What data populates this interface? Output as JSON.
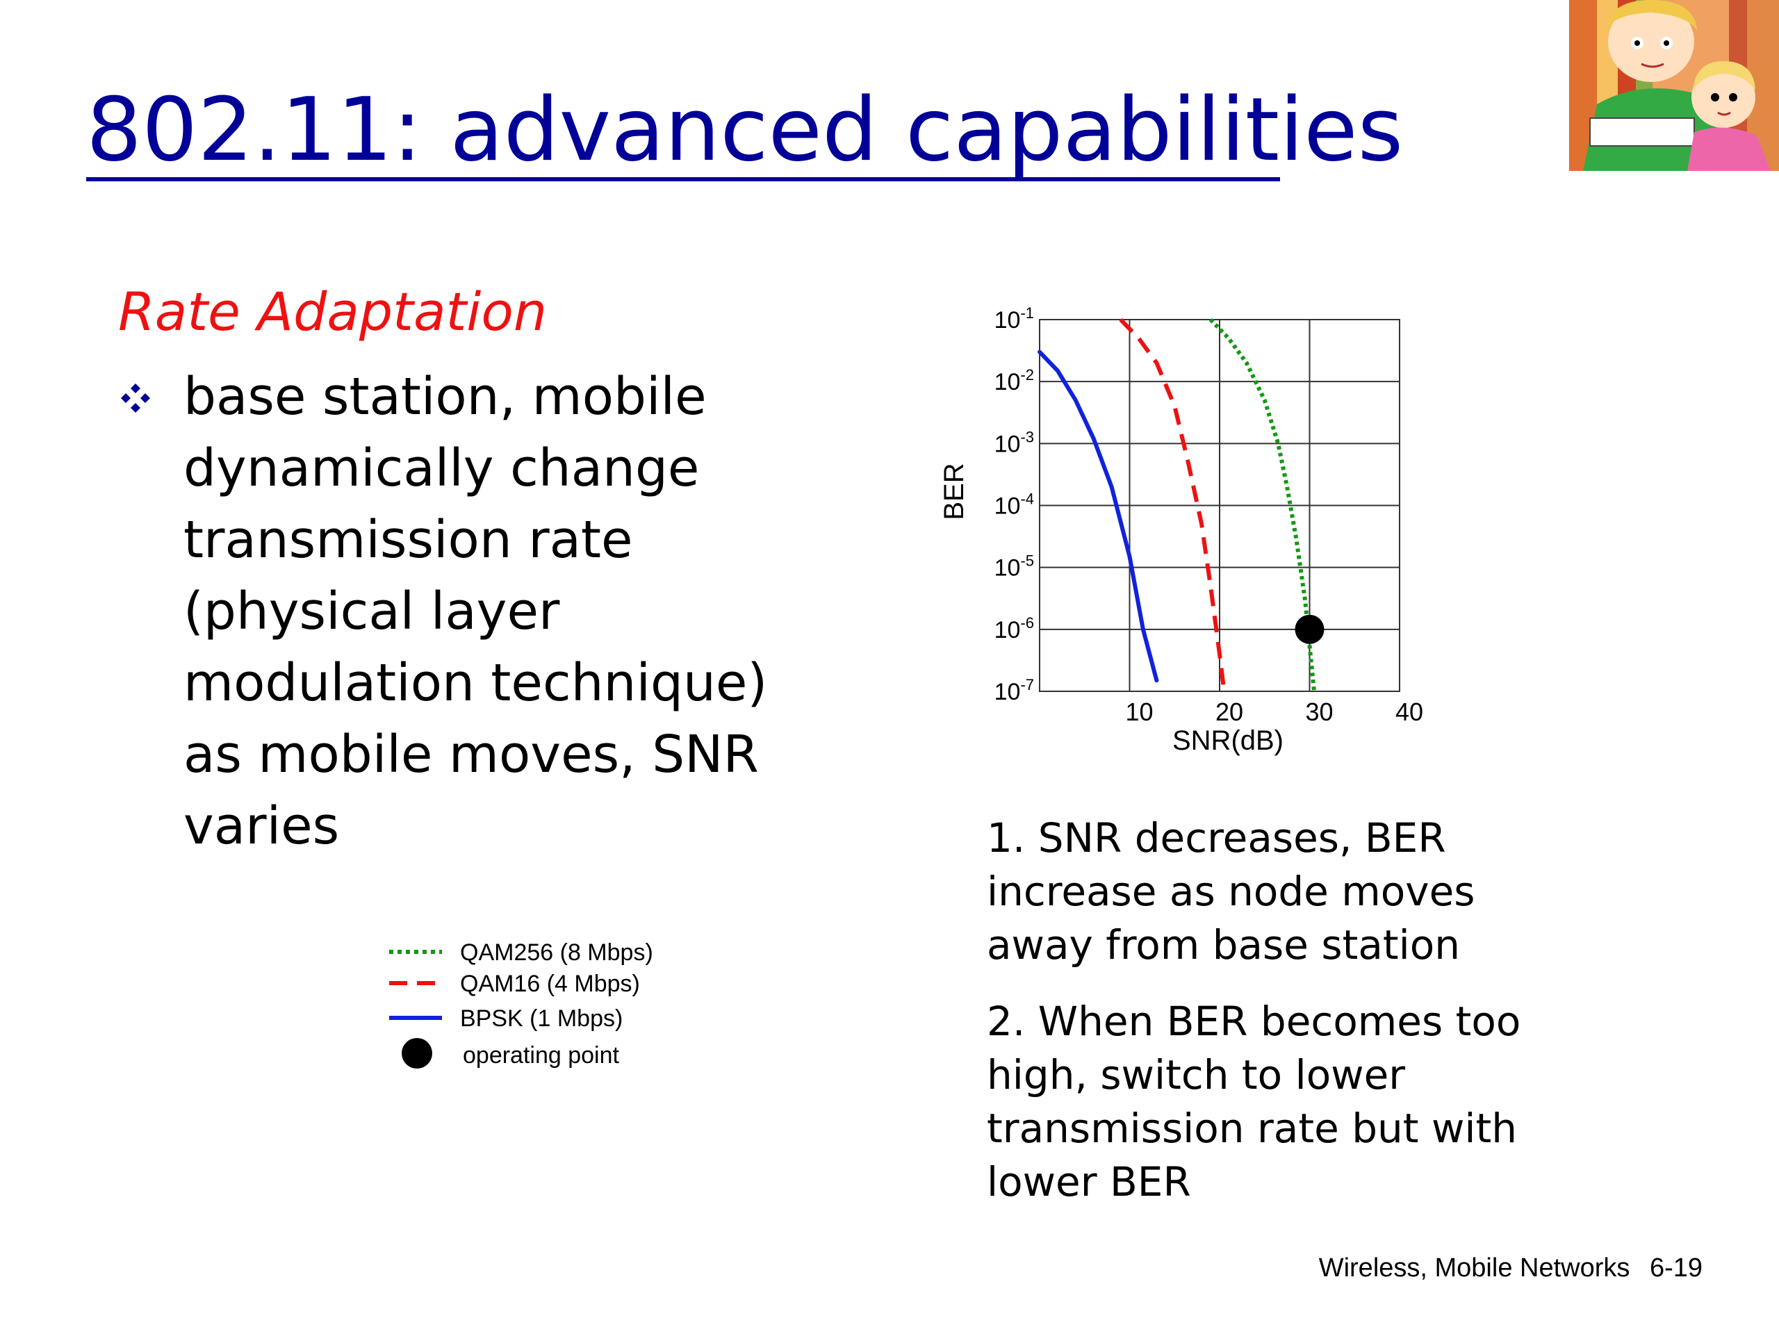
{
  "slide": {
    "title": "802.11: advanced capabilities",
    "subtitle": "Rate Adaptation",
    "bullet_lines": [
      "base station, mobile",
      "dynamically change",
      "transmission rate",
      "(physical layer",
      "modulation technique)",
      "as mobile moves, SNR",
      "varies"
    ],
    "note1_lines": [
      "1. SNR decreases, BER",
      "increase as node moves",
      "away from base station"
    ],
    "note2_lines": [
      "2. When BER becomes too",
      "high, switch to lower",
      "transmission rate but with",
      "lower BER"
    ],
    "footer_section": "Wireless, Mobile Networks",
    "footer_page": "6-19"
  },
  "colors": {
    "title": "#000099",
    "subtitle": "#ee1111",
    "qam256": "#119911",
    "qam16": "#ee1111",
    "bpsk": "#1122dd",
    "operating_point": "#000000"
  },
  "chart_data": {
    "type": "line",
    "xlabel": "SNR(dB)",
    "ylabel": "BER",
    "x_ticks": [
      "10",
      "20",
      "30",
      "40"
    ],
    "xlim": [
      0,
      40
    ],
    "y_scale": "log",
    "y_ticks": [
      {
        "base": "10",
        "exp": "-1"
      },
      {
        "base": "10",
        "exp": "-2"
      },
      {
        "base": "10",
        "exp": "-3"
      },
      {
        "base": "10",
        "exp": "-4"
      },
      {
        "base": "10",
        "exp": "-5"
      },
      {
        "base": "10",
        "exp": "-6"
      },
      {
        "base": "10",
        "exp": "-7"
      }
    ],
    "ylim": [
      1e-07,
      0.1
    ],
    "grid": true,
    "series": [
      {
        "name": "QAM256 (8 Mbps)",
        "style": "dotted",
        "color": "#119911",
        "points": [
          [
            19,
            0.1
          ],
          [
            21,
            0.05
          ],
          [
            23,
            0.02
          ],
          [
            25,
            0.005
          ],
          [
            26.5,
            0.001
          ],
          [
            27.5,
            0.0002
          ],
          [
            28.5,
            3e-05
          ],
          [
            29.5,
            3e-06
          ],
          [
            30.5,
            1e-07
          ]
        ]
      },
      {
        "name": "QAM16 (4 Mbps)",
        "style": "dashed",
        "color": "#ee1111",
        "points": [
          [
            9,
            0.1
          ],
          [
            11,
            0.05
          ],
          [
            13,
            0.02
          ],
          [
            15,
            0.004
          ],
          [
            16.5,
            0.0005
          ],
          [
            18,
            5e-05
          ],
          [
            19,
            5e-06
          ],
          [
            20,
            4e-07
          ],
          [
            20.5,
            1e-07
          ]
        ]
      },
      {
        "name": "BPSK (1 Mbps)",
        "style": "solid",
        "color": "#1122dd",
        "points": [
          [
            0,
            0.03
          ],
          [
            2,
            0.015
          ],
          [
            4,
            0.005
          ],
          [
            6,
            0.0012
          ],
          [
            8,
            0.0002
          ],
          [
            10,
            1.5e-05
          ],
          [
            11.5,
            1e-06
          ],
          [
            13,
            1.5e-07
          ]
        ]
      }
    ],
    "operating_point": {
      "name": "operating point",
      "x": 30,
      "y": 1e-06
    }
  }
}
